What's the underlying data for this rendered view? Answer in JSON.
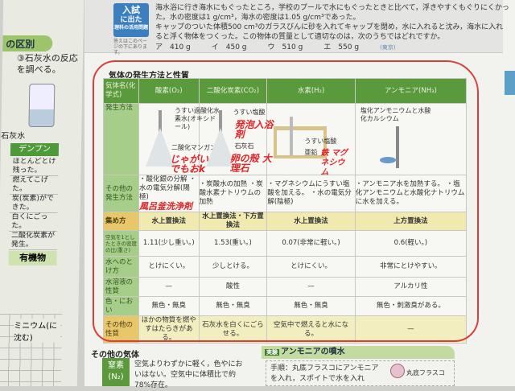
{
  "left_page": {
    "title": "の区別",
    "step": "③石灰水の反応を調べる。",
    "limewater": "石灰水",
    "table_header": "デンプン",
    "cells": [
      "ほとんどとけ残った。",
      "燃えてこげた。",
      "炭(炭素)ができた。",
      "白くにごった。",
      "二酸化炭素が発生。"
    ],
    "result": "有機物",
    "graph_label": "ミニウム(に沈む)"
  },
  "quiz": {
    "badge_line1": "入試",
    "badge_line2": "に出た",
    "badge_line3": "理科の活用問題",
    "badge_note": "答えはこのページの下にあります。",
    "text1": "海水浴に行き海水にもぐったところ，学校のプールで水にもぐったときと比べて，浮きやすくもぐりにくかった。水の密度は1 g/cm³，海水の密度は1.05 g/cm³であった。",
    "text2": "キャップのついた体積500 cm³のガラスびんに砂を入れてキャップを閉め，水に入れると沈み，海水に入れると浮く物体をつくった。この物体の質量として適切なのは，次のうちではどれですか。",
    "choices": [
      "ア　410 g",
      "イ　450 g",
      "ウ　510 g",
      "エ　550 g"
    ],
    "source": "(東京)"
  },
  "section_title": "気体の発生方法と性質",
  "table": {
    "header": {
      "label": "気体名(化学式)",
      "gases": [
        "酸素(O₂)",
        "二酸化炭素(CO₂)",
        "水素(H₂)",
        "アンモニア(NH₃)"
      ]
    },
    "method_label": "発生方法",
    "apparatus": [
      [
        "うすい過酸化水素水(オキシドール)",
        "二酸化マンガン"
      ],
      [
        "うすい塩酸",
        "石灰石"
      ],
      [
        "うすい塩酸",
        "亜鉛"
      ],
      [
        "塩化アンモニウムと水酸化カルシウム"
      ]
    ],
    "rows": [
      {
        "label": "その他の発生方法",
        "values": [
          "・酸化銀の分解 ・水の電気分解(陽極)",
          "・炭酸水の加熱 ・炭酸水素ナトリウムの加熱",
          "・マグネシウムにうすい塩酸を加える。 ・水の電気分解(陰極)",
          "・アンモニア水を加熱する。 ・塩化アンモニウムと水酸化ナトリウムに水を加える。"
        ]
      },
      {
        "label": "集め方",
        "values": [
          "水上置換法",
          "水上置換法・下方置換法",
          "水上置換法",
          "上方置換法"
        ]
      },
      {
        "label": "空気を1としたときの密度の比(重さ)",
        "values": [
          "1.11(少し重い。)",
          "1.53(重い。)",
          "0.07(非常に軽い。)",
          "0.6(軽い。)"
        ]
      },
      {
        "label": "水へのとけ方",
        "values": [
          "とけにくい。",
          "少しとける。",
          "とけにくい。",
          "非常にとけやすい。"
        ]
      },
      {
        "label": "水溶液の性質",
        "values": [
          "—",
          "酸性",
          "—",
          "アルカリ性"
        ]
      },
      {
        "label": "色・におい",
        "values": [
          "無色・無臭",
          "無色・無臭",
          "無色・無臭",
          "無色・刺激臭がある。"
        ]
      },
      {
        "label": "その他の性質",
        "values": [
          "ほかの物質を燃やすはたらきがある。",
          "石灰水を白くにごらせる。",
          "空気中で燃えると水になる。",
          "—"
        ]
      }
    ]
  },
  "handwriting": {
    "potato": "じゃがいもでもおk",
    "bath_bomb": "発泡入浴剤",
    "eggshell": "卵の殻 大理石",
    "iron_mg": "鉄 マグネシウム",
    "bath_cleaner": "風呂釜洗浄剤",
    "accent": "#e0252a"
  },
  "other_gases": {
    "title": "その他の気体",
    "n2_name": "窒素",
    "n2_formula": "(N₂)",
    "n2_text": "空気よりわずかに軽く，色やにおいはない。空気中に体積比で約78%存在。"
  },
  "experiment": {
    "tag": "実験",
    "title": "アンモニアの噴水",
    "body": "手順：丸底フラスコにアンモニアを入れ，スポイトで水を入れ",
    "flask_label": "丸底フラスコ"
  },
  "colors": {
    "header_green": "#5a9a3c",
    "label_green": "#a7cd8a",
    "yellow": "#f0eab0",
    "quiz_badge": "#3b7fc0"
  }
}
